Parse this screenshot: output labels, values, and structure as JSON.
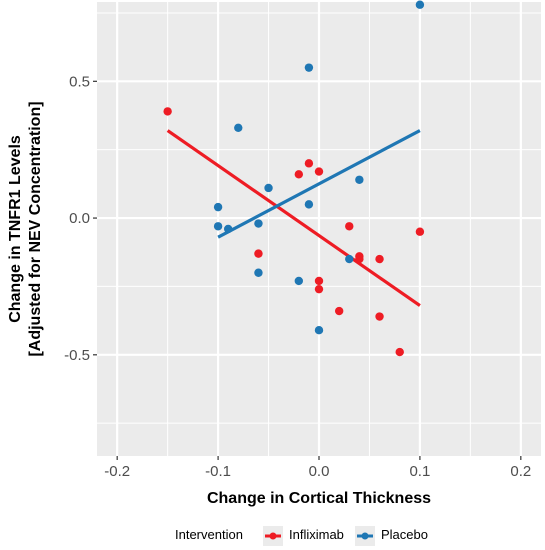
{
  "chart_data": {
    "type": "scatter",
    "xlabel": "Change in Cortical Thickness",
    "ylabel_lines": [
      "Change in TNFR1 Levels",
      "[Adjusted for NEV Concentration]"
    ],
    "xlim": [
      -0.22,
      0.22
    ],
    "ylim": [
      -0.87,
      0.79
    ],
    "x_ticks": [
      -0.2,
      -0.1,
      0.0,
      0.1,
      0.2
    ],
    "x_tick_labels": [
      "-0.2",
      "-0.1",
      "0.0",
      "0.1",
      "0.2"
    ],
    "y_ticks": [
      -0.5,
      0.0,
      0.5
    ],
    "y_tick_labels": [
      "-0.5",
      "0.0",
      "0.5"
    ],
    "grid": true,
    "legend": {
      "title": "Intervention",
      "placement": "bottom",
      "entries": [
        "Infliximab",
        "Placebo"
      ]
    },
    "series": [
      {
        "name": "Infliximab",
        "color": "#ee1c24",
        "points": [
          [
            -0.15,
            0.39
          ],
          [
            -0.06,
            -0.13
          ],
          [
            -0.02,
            0.16
          ],
          [
            -0.01,
            0.2
          ],
          [
            0.0,
            0.17
          ],
          [
            0.0,
            -0.23
          ],
          [
            0.0,
            -0.26
          ],
          [
            0.02,
            -0.34
          ],
          [
            0.03,
            -0.03
          ],
          [
            0.04,
            -0.14
          ],
          [
            0.04,
            -0.15
          ],
          [
            0.06,
            -0.15
          ],
          [
            0.06,
            -0.36
          ],
          [
            0.08,
            -0.49
          ],
          [
            0.1,
            -0.05
          ]
        ],
        "fit_line": [
          [
            -0.15,
            0.32
          ],
          [
            0.1,
            -0.32
          ]
        ]
      },
      {
        "name": "Placebo",
        "color": "#1f77b4",
        "points": [
          [
            -0.1,
            0.04
          ],
          [
            -0.1,
            -0.03
          ],
          [
            -0.09,
            -0.04
          ],
          [
            -0.08,
            0.33
          ],
          [
            -0.06,
            -0.02
          ],
          [
            -0.06,
            -0.2
          ],
          [
            -0.05,
            0.11
          ],
          [
            -0.02,
            -0.23
          ],
          [
            -0.01,
            0.55
          ],
          [
            -0.01,
            0.05
          ],
          [
            0.0,
            -0.41
          ],
          [
            0.03,
            -0.15
          ],
          [
            0.04,
            0.14
          ],
          [
            0.1,
            0.78
          ]
        ],
        "fit_line": [
          [
            -0.1,
            -0.07
          ],
          [
            0.1,
            0.32
          ]
        ]
      }
    ]
  }
}
